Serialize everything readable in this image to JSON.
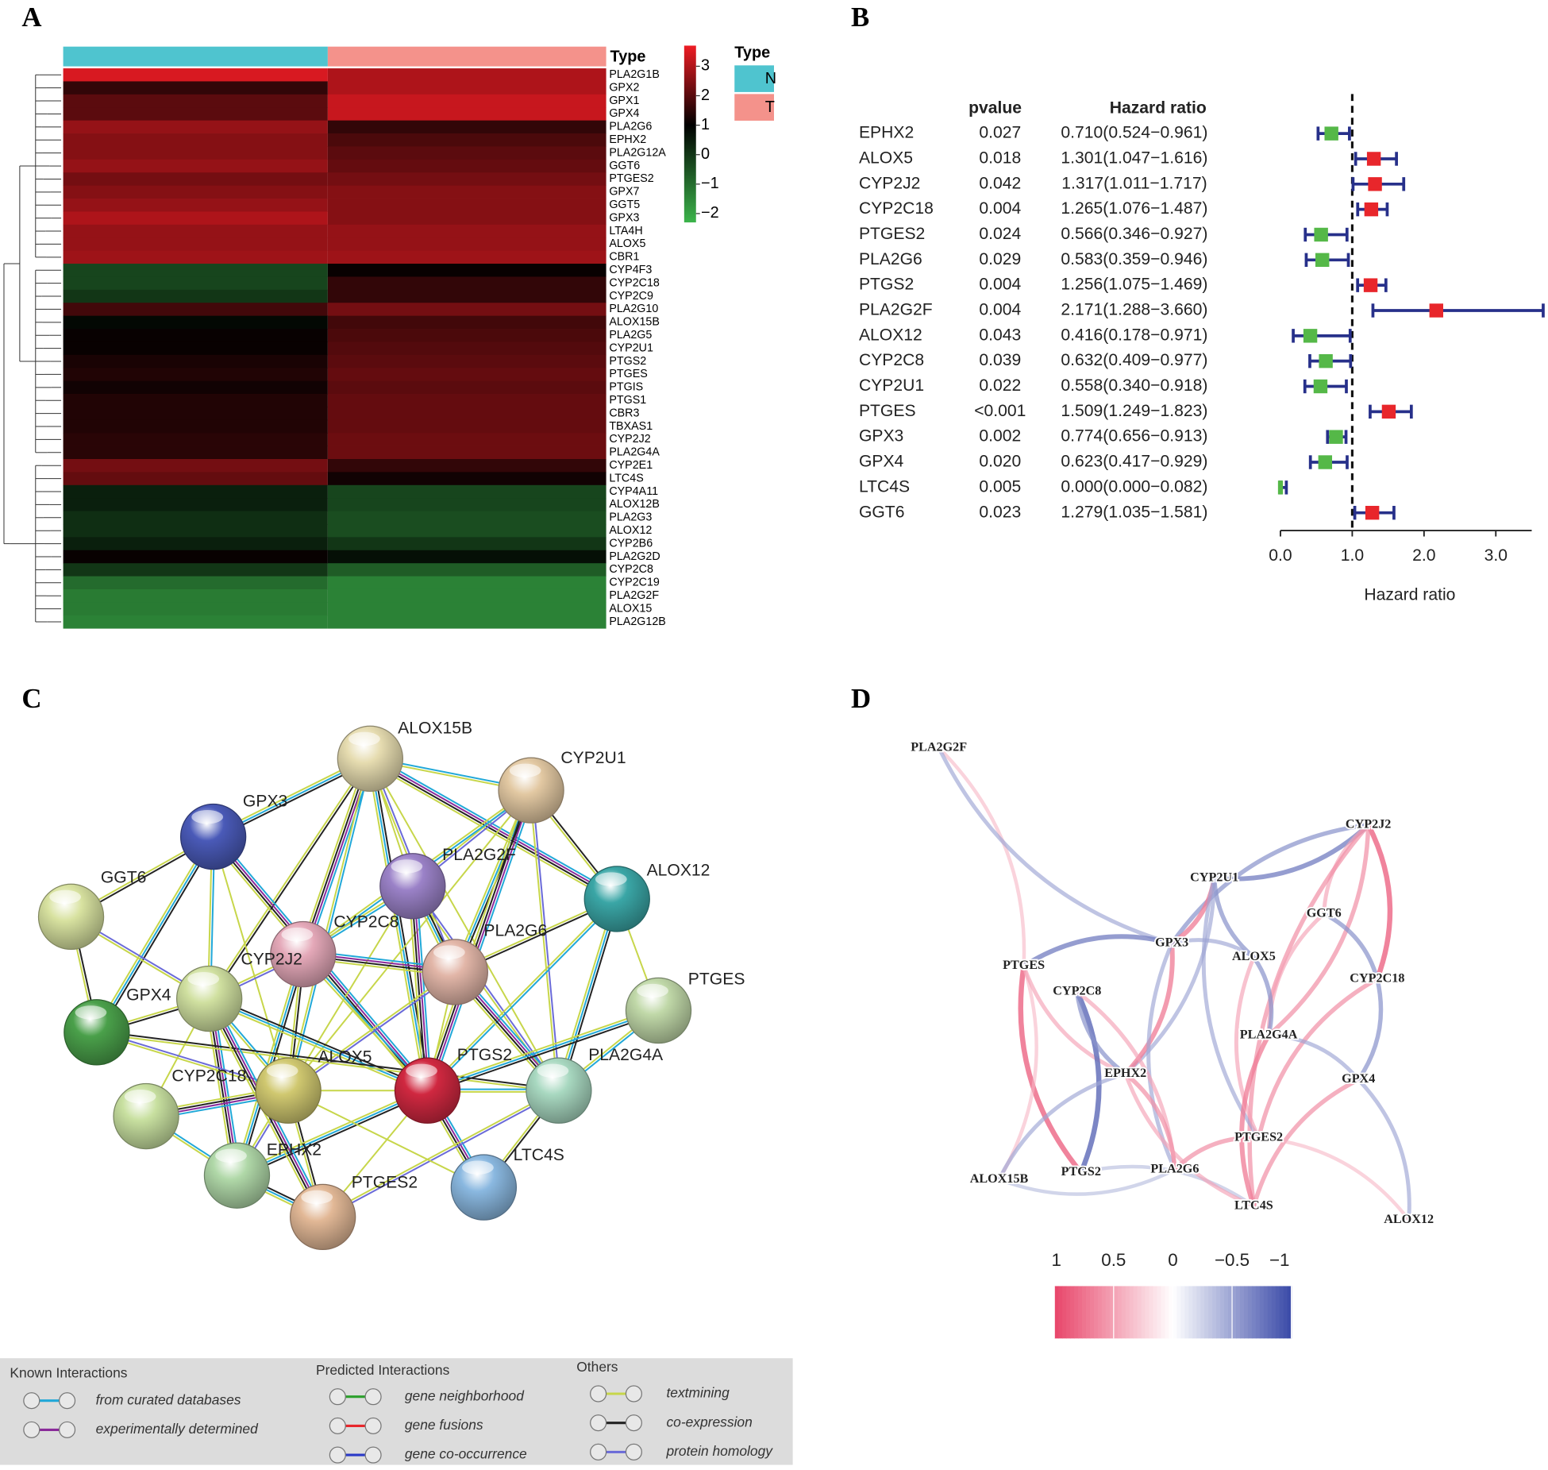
{
  "panel_labels": [
    "A",
    "B",
    "C",
    "D"
  ],
  "chart_data": [
    {
      "type": "heatmap",
      "annotation_label": "Type",
      "legend_title": "Type",
      "column_groups": [
        {
          "name": "N",
          "color": "#4fc4cf"
        },
        {
          "name": "T",
          "color": "#f4928b"
        }
      ],
      "rows": [
        "PLA2G1B",
        "GPX2",
        "GPX1",
        "GPX4",
        "PLA2G6",
        "EPHX2",
        "PLA2G12A",
        "GGT6",
        "PTGES2",
        "GPX7",
        "GGT5",
        "GPX3",
        "LTA4H",
        "ALOX5",
        "CBR1",
        "CYP4F3",
        "CYP2C18",
        "CYP2C9",
        "PLA2G10",
        "ALOX15B",
        "PLA2G5",
        "CYP2U1",
        "PTGS2",
        "PTGES",
        "PTGIS",
        "PTGS1",
        "CBR3",
        "TBXAS1",
        "CYP2J2",
        "PLA2G4A",
        "CYP2E1",
        "LTC4S",
        "CYP4A11",
        "ALOX12B",
        "PLA2G3",
        "ALOX12",
        "CYP2B6",
        "PLA2G2D",
        "CYP2C8",
        "CYP2C19",
        "PLA2G2F",
        "ALOX15",
        "PLA2G12B"
      ],
      "values": [
        [
          3,
          2.5
        ],
        [
          1,
          2.5
        ],
        [
          1.5,
          2.8
        ],
        [
          1.5,
          2.8
        ],
        [
          2.2,
          1
        ],
        [
          2,
          1.3
        ],
        [
          2,
          1.5
        ],
        [
          2.2,
          1.6
        ],
        [
          1.8,
          1.8
        ],
        [
          2,
          2
        ],
        [
          2.2,
          2
        ],
        [
          2.5,
          2
        ],
        [
          2.2,
          2.2
        ],
        [
          2.2,
          2.2
        ],
        [
          2.3,
          2.3
        ],
        [
          -0.5,
          0.5
        ],
        [
          -0.5,
          1
        ],
        [
          -0.3,
          1
        ],
        [
          1.2,
          1.8
        ],
        [
          0.3,
          1.2
        ],
        [
          0.5,
          1.3
        ],
        [
          0.5,
          1.4
        ],
        [
          0.7,
          1.5
        ],
        [
          0.8,
          1.6
        ],
        [
          0.6,
          1.5
        ],
        [
          0.8,
          1.6
        ],
        [
          0.8,
          1.6
        ],
        [
          0.8,
          1.6
        ],
        [
          0.9,
          1.7
        ],
        [
          0.9,
          1.7
        ],
        [
          1.8,
          1
        ],
        [
          1.6,
          0.6
        ],
        [
          0,
          -0.5
        ],
        [
          0,
          -0.5
        ],
        [
          -0.2,
          -0.6
        ],
        [
          -0.2,
          -0.6
        ],
        [
          0,
          -0.3
        ],
        [
          0.5,
          0.2
        ],
        [
          -0.3,
          -0.8
        ],
        [
          -1,
          -1.3
        ],
        [
          -1.2,
          -1.3
        ],
        [
          -1.2,
          -1.3
        ],
        [
          -1.3,
          -1.3
        ]
      ],
      "colorbar_lim": [
        -2.3,
        3.7
      ],
      "colorbar_ticks": [
        3,
        2,
        1,
        0,
        {
          "value": -1,
          "label": "−1"
        },
        {
          "value": -2,
          "label": "−2"
        }
      ],
      "colors": [
        "#3cb44b",
        "#000000",
        "#ee1c24"
      ]
    },
    {
      "type": "forest",
      "column_headers": [
        "pvalue",
        "Hazard ratio"
      ],
      "categories": [
        "EPHX2",
        "ALOX5",
        "CYP2J2",
        "CYP2C18",
        "PTGES2",
        "PLA2G6",
        "PTGS2",
        "PLA2G2F",
        "ALOX12",
        "CYP2C8",
        "CYP2U1",
        "PTGES",
        "GPX3",
        "GPX4",
        "LTC4S",
        "GGT6"
      ],
      "pvalues": [
        "0.027",
        "0.018",
        "0.042",
        "0.004",
        "0.024",
        "0.029",
        "0.004",
        "0.004",
        "0.043",
        "0.039",
        "0.022",
        "<0.001",
        "0.002",
        "0.020",
        "0.005",
        "0.023"
      ],
      "values": [
        0.71,
        1.301,
        1.317,
        1.265,
        0.566,
        0.583,
        1.256,
        2.171,
        0.416,
        0.632,
        0.558,
        1.509,
        0.774,
        0.623,
        0.0,
        1.279
      ],
      "lower": [
        0.524,
        1.047,
        1.011,
        1.076,
        0.346,
        0.359,
        1.075,
        1.288,
        0.178,
        0.409,
        0.34,
        1.249,
        0.656,
        0.417,
        0.0,
        1.035
      ],
      "upper": [
        0.961,
        1.616,
        1.717,
        1.487,
        0.927,
        0.946,
        1.469,
        3.66,
        0.971,
        0.977,
        0.918,
        1.823,
        0.913,
        0.929,
        0.082,
        1.581
      ],
      "value_labels": [
        "0.710(0.524−0.961)",
        "1.301(1.047−1.616)",
        "1.317(1.011−1.717)",
        "1.265(1.076−1.487)",
        "0.566(0.346−0.927)",
        "0.583(0.359−0.946)",
        "1.256(1.075−1.469)",
        "2.171(1.288−3.660)",
        "0.416(0.178−0.971)",
        "0.632(0.409−0.977)",
        "0.558(0.340−0.918)",
        "1.509(1.249−1.823)",
        "0.774(0.656−0.913)",
        "0.623(0.417−0.929)",
        "0.000(0.000−0.082)",
        "1.279(1.035−1.581)"
      ],
      "xlabel": "Hazard ratio",
      "xlim": [
        0,
        3.5
      ],
      "xticks": [
        {
          "value": 0,
          "label": "0.0"
        },
        {
          "value": 1,
          "label": "1.0"
        },
        {
          "value": 2,
          "label": "2.0"
        },
        {
          "value": 3,
          "label": "3.0"
        }
      ],
      "reference_line": 1,
      "color_below": "#55b848",
      "color_above": "#e8262b",
      "whisker_color": "#27308a"
    }
  ],
  "network_c": {
    "nodes": [
      {
        "label": "ALOX15B",
        "color": "#e6dcb0"
      },
      {
        "label": "CYP2U1",
        "color": "#e2c8a2"
      },
      {
        "label": "GPX3",
        "color": "#4a5ab8"
      },
      {
        "label": "GGT6",
        "color": "#d8e2a0"
      },
      {
        "label": "PLA2G2F",
        "color": "#9b82c8"
      },
      {
        "label": "ALOX12",
        "color": "#3aa6a6"
      },
      {
        "label": "CYP2C8",
        "color": "#e4a8b8"
      },
      {
        "label": "PLA2G6",
        "color": "#e2b6a8"
      },
      {
        "label": "CYP2J2",
        "color": "#d0e0a0"
      },
      {
        "label": "GPX4",
        "color": "#4aa04a"
      },
      {
        "label": "PTGES",
        "color": "#c0d8a8"
      },
      {
        "label": "ALOX5",
        "color": "#d0c870"
      },
      {
        "label": "PTGS2",
        "color": "#d02840"
      },
      {
        "label": "PLA2G4A",
        "color": "#a8d8c0"
      },
      {
        "label": "CYP2C18",
        "color": "#c8e0a0"
      },
      {
        "label": "EPHX2",
        "color": "#b0d8a8"
      },
      {
        "label": "PTGES2",
        "color": "#e2b896"
      },
      {
        "label": "LTC4S",
        "color": "#8ab8e0"
      }
    ],
    "legend": [
      {
        "title": "Known Interactions",
        "items": [
          {
            "label": "from curated databases",
            "color": "#21a8d8"
          },
          {
            "label": "experimentally determined",
            "color": "#8a2a9a"
          }
        ]
      },
      {
        "title": "Predicted Interactions",
        "items": [
          {
            "label": "gene neighborhood",
            "color": "#2ca02c"
          },
          {
            "label": "gene fusions",
            "color": "#e8262b"
          },
          {
            "label": "gene co-occurrence",
            "color": "#2a3ac8"
          }
        ]
      },
      {
        "title": "Others",
        "items": [
          {
            "label": "textmining",
            "color": "#c7d64a"
          },
          {
            "label": "co-expression",
            "color": "#222222"
          },
          {
            "label": "protein homology",
            "color": "#6a6ad8"
          }
        ]
      }
    ]
  },
  "network_d": {
    "nodes": [
      "PLA2G2F",
      "CYP2J2",
      "CYP2U1",
      "GGT6",
      "PTGES",
      "GPX3",
      "ALOX5",
      "CYP2C18",
      "CYP2C8",
      "PLA2G4A",
      "EPHX2",
      "GPX4",
      "PTGES2",
      "ALOX15B",
      "PTGS2",
      "PLA2G6",
      "LTC4S",
      "ALOX12"
    ],
    "edges": [
      {
        "source": 0,
        "target": 4,
        "r": 0.4
      },
      {
        "source": 0,
        "target": 5,
        "r": -0.5
      },
      {
        "source": 1,
        "target": 2,
        "r": -0.7
      },
      {
        "source": 1,
        "target": 3,
        "r": 0.5
      },
      {
        "source": 1,
        "target": 7,
        "r": 0.8
      },
      {
        "source": 1,
        "target": 5,
        "r": -0.6
      },
      {
        "source": 1,
        "target": 9,
        "r": 0.6
      },
      {
        "source": 1,
        "target": 16,
        "r": 0.6
      },
      {
        "source": 2,
        "target": 5,
        "r": 0.7
      },
      {
        "source": 2,
        "target": 6,
        "r": -0.6
      },
      {
        "source": 2,
        "target": 10,
        "r": -0.5
      },
      {
        "source": 2,
        "target": 12,
        "r": -0.5
      },
      {
        "source": 3,
        "target": 7,
        "r": -0.6
      },
      {
        "source": 3,
        "target": 9,
        "r": 0.5
      },
      {
        "source": 4,
        "target": 5,
        "r": -0.7
      },
      {
        "source": 4,
        "target": 14,
        "r": 0.8
      },
      {
        "source": 4,
        "target": 13,
        "r": 0.4
      },
      {
        "source": 4,
        "target": 10,
        "r": 0.5
      },
      {
        "source": 5,
        "target": 10,
        "r": 0.7
      },
      {
        "source": 5,
        "target": 15,
        "r": -0.5
      },
      {
        "source": 6,
        "target": 9,
        "r": -0.6
      },
      {
        "source": 6,
        "target": 12,
        "r": 0.5
      },
      {
        "source": 7,
        "target": 11,
        "r": -0.6
      },
      {
        "source": 7,
        "target": 12,
        "r": 0.6
      },
      {
        "source": 8,
        "target": 14,
        "r": -0.8
      },
      {
        "source": 8,
        "target": 10,
        "r": -0.6
      },
      {
        "source": 8,
        "target": 15,
        "r": 0.5
      },
      {
        "source": 9,
        "target": 16,
        "r": 0.7
      },
      {
        "source": 9,
        "target": 11,
        "r": -0.5
      },
      {
        "source": 10,
        "target": 13,
        "r": -0.5
      },
      {
        "source": 10,
        "target": 15,
        "r": 0.6
      },
      {
        "source": 11,
        "target": 16,
        "r": 0.6
      },
      {
        "source": 11,
        "target": 17,
        "r": -0.5
      },
      {
        "source": 12,
        "target": 15,
        "r": 0.6
      },
      {
        "source": 12,
        "target": 17,
        "r": 0.4
      },
      {
        "source": 13,
        "target": 15,
        "r": -0.4
      },
      {
        "source": 14,
        "target": 16,
        "r": -0.4
      },
      {
        "source": 10,
        "target": 16,
        "r": 0.5
      },
      {
        "source": 5,
        "target": 6,
        "r": -0.5
      }
    ],
    "colorbar_ticks": [
      1,
      0.5,
      0,
      {
        "value": -0.5,
        "label": "−0.5"
      },
      {
        "value": -1,
        "label": "−1"
      }
    ],
    "colorbar_lim": [
      1,
      -1
    ],
    "colors": [
      "#e8456a",
      "#ffffff",
      "#3a4aa8"
    ]
  }
}
